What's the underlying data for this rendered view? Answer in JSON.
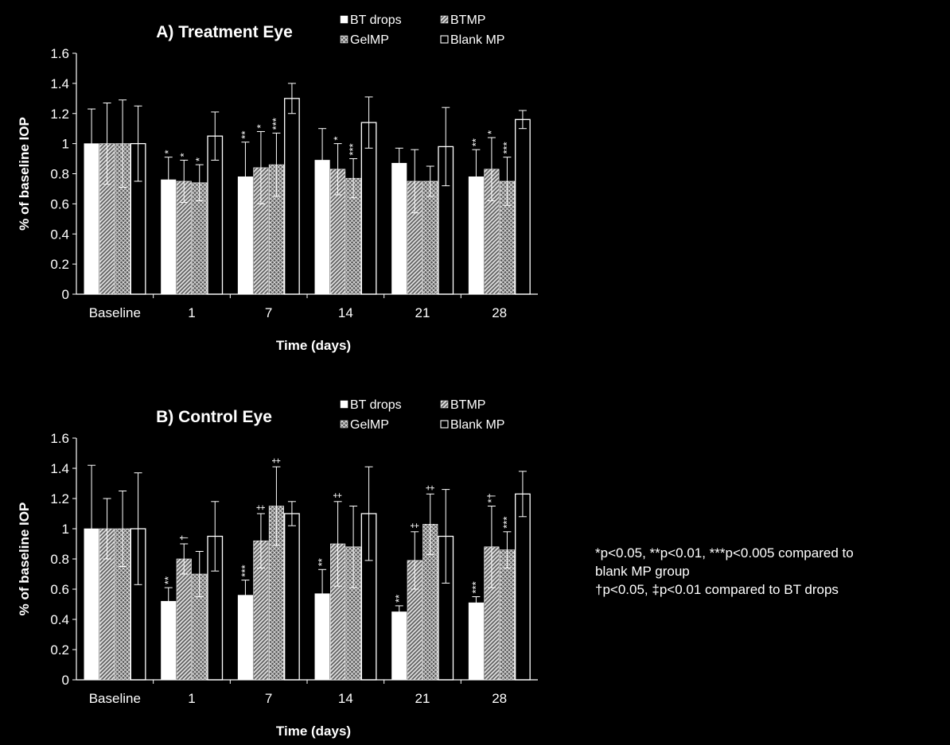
{
  "colors": {
    "background": "#000000",
    "foreground": "#ffffff"
  },
  "notes": {
    "line1": "*p<0.05, **p<0.01, ***p<0.005 compared to",
    "line2": "blank MP group",
    "line3": "†p<0.05, ‡p<0.01 compared to BT drops"
  },
  "chart_data": [
    {
      "type": "bar",
      "title": "A) Treatment Eye",
      "xlabel": "Time (days)",
      "ylabel": "% of baseline IOP",
      "ylim": [
        0,
        1.6
      ],
      "yticks": [
        "0",
        "0.2",
        "0.4",
        "0.6",
        "0.8",
        "1",
        "1.2",
        "1.4",
        "1.6"
      ],
      "grid": false,
      "legend_position": "top",
      "categories": [
        "Baseline",
        "1",
        "7",
        "14",
        "21",
        "28"
      ],
      "series": [
        {
          "name": "BT drops",
          "pattern": "solid",
          "values": [
            1.0,
            0.76,
            0.78,
            0.89,
            0.87,
            0.78
          ],
          "errors": [
            0.23,
            0.15,
            0.23,
            0.21,
            0.1,
            0.18
          ],
          "annotations": [
            "",
            "*",
            "**",
            "",
            "",
            "**"
          ]
        },
        {
          "name": "BTMP",
          "pattern": "diagonal",
          "values": [
            1.0,
            0.75,
            0.84,
            0.83,
            0.75,
            0.83
          ],
          "errors": [
            0.27,
            0.14,
            0.24,
            0.17,
            0.21,
            0.21
          ],
          "annotations": [
            "",
            "*",
            "*",
            "*",
            "",
            "*"
          ]
        },
        {
          "name": "GelMP",
          "pattern": "crosshatch",
          "values": [
            1.0,
            0.74,
            0.86,
            0.77,
            0.75,
            0.75
          ],
          "errors": [
            0.29,
            0.12,
            0.21,
            0.13,
            0.1,
            0.16
          ],
          "annotations": [
            "",
            "*",
            "***",
            "***",
            "",
            "***"
          ]
        },
        {
          "name": "Blank MP",
          "pattern": "open",
          "values": [
            1.0,
            1.05,
            1.3,
            1.14,
            0.98,
            1.16
          ],
          "errors": [
            0.25,
            0.16,
            0.1,
            0.17,
            0.26,
            0.06
          ],
          "annotations": [
            "",
            "",
            "",
            "",
            "",
            ""
          ]
        }
      ]
    },
    {
      "type": "bar",
      "title": "B) Control Eye",
      "xlabel": "Time (days)",
      "ylabel": "% of baseline IOP",
      "ylim": [
        0,
        1.6
      ],
      "yticks": [
        "0",
        "0.2",
        "0.4",
        "0.6",
        "0.8",
        "1",
        "1.2",
        "1.4",
        "1.6"
      ],
      "grid": false,
      "legend_position": "top",
      "categories": [
        "Baseline",
        "1",
        "7",
        "14",
        "21",
        "28"
      ],
      "series": [
        {
          "name": "BT drops",
          "pattern": "solid",
          "values": [
            1.0,
            0.52,
            0.56,
            0.57,
            0.45,
            0.51
          ],
          "errors": [
            0.42,
            0.09,
            0.1,
            0.16,
            0.04,
            0.04
          ],
          "annotations": [
            "",
            "**",
            "***",
            "**",
            "**",
            "***"
          ]
        },
        {
          "name": "BTMP",
          "pattern": "diagonal",
          "values": [
            1.0,
            0.8,
            0.92,
            0.9,
            0.79,
            0.88
          ],
          "errors": [
            0.2,
            0.1,
            0.18,
            0.28,
            0.19,
            0.27
          ],
          "annotations": [
            "",
            "†",
            "‡",
            "‡",
            "‡",
            "*†"
          ]
        },
        {
          "name": "GelMP",
          "pattern": "crosshatch",
          "values": [
            1.0,
            0.7,
            1.15,
            0.88,
            1.03,
            0.86
          ],
          "errors": [
            0.25,
            0.15,
            0.26,
            0.27,
            0.2,
            0.12
          ],
          "annotations": [
            "",
            "",
            "‡",
            "",
            "‡",
            "***"
          ]
        },
        {
          "name": "Blank MP",
          "pattern": "open",
          "values": [
            1.0,
            0.95,
            1.1,
            1.1,
            0.95,
            1.23
          ],
          "errors": [
            0.37,
            0.23,
            0.08,
            0.31,
            0.31,
            0.15
          ],
          "annotations": [
            "",
            "",
            "",
            "",
            "",
            ""
          ]
        }
      ]
    }
  ]
}
